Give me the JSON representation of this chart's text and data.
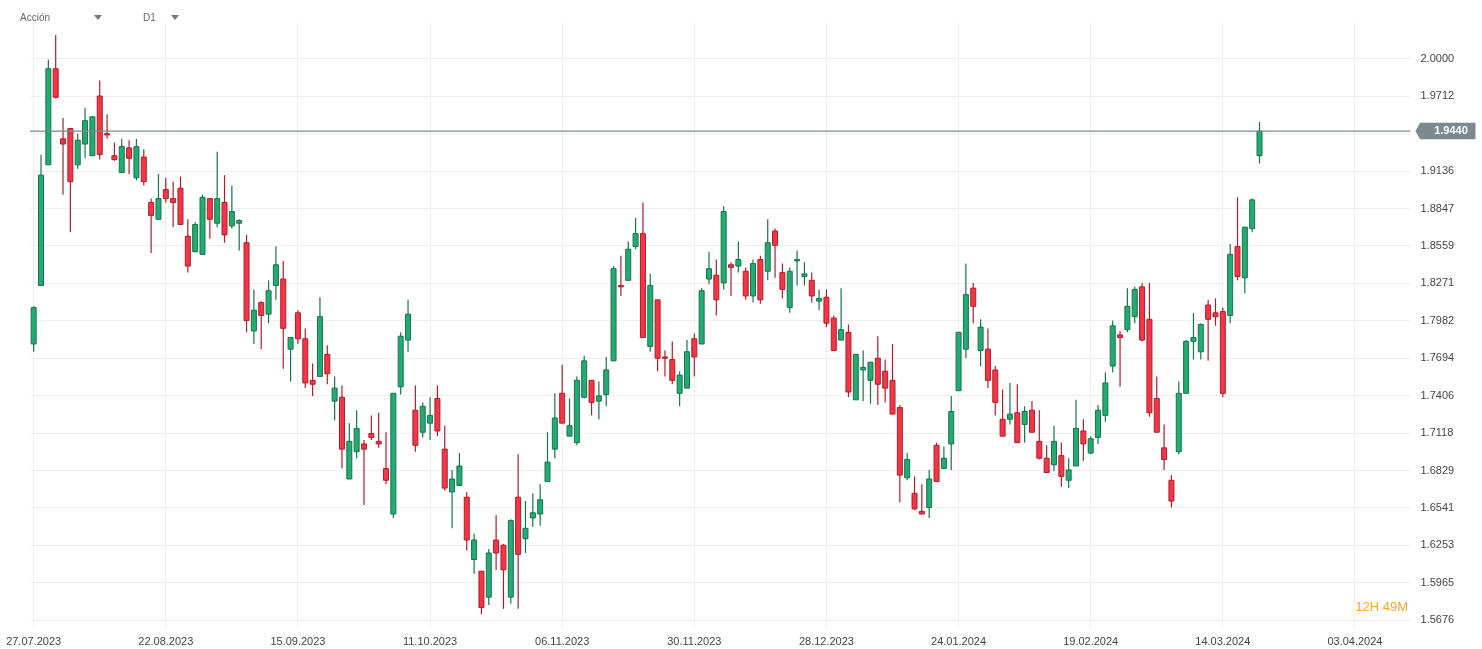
{
  "chart_data": {
    "type": "candlestick",
    "title": "Acción",
    "subtitle": "D1",
    "categories": [
      "27.07.2023",
      null,
      null,
      null,
      null,
      null,
      null,
      null,
      null,
      null,
      null,
      null,
      null,
      null,
      null,
      null,
      null,
      null,
      "22.08.2023",
      null,
      null,
      null,
      null,
      null,
      null,
      null,
      null,
      null,
      null,
      null,
      null,
      null,
      null,
      null,
      null,
      null,
      "15.09.2023",
      null,
      null,
      null,
      null,
      null,
      null,
      null,
      null,
      null,
      null,
      null,
      null,
      null,
      null,
      null,
      null,
      null,
      "11.10.2023",
      null,
      null,
      null,
      null,
      null,
      null,
      null,
      null,
      null,
      null,
      null,
      null,
      null,
      null,
      null,
      null,
      null,
      "06.11.2023",
      null,
      null,
      null,
      null,
      null,
      null,
      null,
      null,
      null,
      null,
      null,
      null,
      null,
      null,
      null,
      null,
      null,
      "30.11.2023",
      null,
      null,
      null,
      null,
      null,
      null,
      null,
      null,
      null,
      null,
      null,
      null,
      null,
      null,
      null,
      null,
      null,
      "28.12.2023",
      null,
      null,
      null,
      null,
      null,
      null,
      null,
      null,
      null,
      null,
      null,
      null,
      null,
      null,
      null,
      null,
      null,
      "24.01.2024",
      null,
      null,
      null,
      null,
      null,
      null,
      null,
      null,
      null,
      null,
      null,
      null,
      null,
      null,
      null,
      null,
      null,
      "19.02.2024",
      null,
      null,
      null,
      null,
      null,
      null,
      null,
      null,
      null,
      null,
      null,
      null,
      null,
      null,
      null,
      null,
      null,
      "14.03.2024",
      null,
      null,
      null,
      null,
      null,
      null,
      null,
      null,
      null,
      null,
      null,
      null,
      null,
      null,
      null,
      null,
      null,
      "03.04.2024",
      null,
      null,
      null,
      null,
      null,
      null,
      null
    ],
    "ohlc": [
      [
        1.78,
        1.809,
        1.774,
        1.808
      ],
      [
        1.825,
        1.926,
        1.825,
        1.91
      ],
      [
        1.918,
        1.999,
        1.918,
        1.992
      ],
      [
        1.992,
        2.018,
        1.969,
        1.97
      ],
      [
        1.938,
        1.954,
        1.895,
        1.934
      ],
      [
        1.946,
        1.946,
        1.866,
        1.905
      ],
      [
        1.918,
        1.942,
        1.915,
        1.937
      ],
      [
        1.934,
        1.962,
        1.923,
        1.952
      ],
      [
        1.925,
        1.955,
        1.925,
        1.955
      ],
      [
        1.971,
        1.983,
        1.922,
        1.926
      ],
      [
        1.942,
        1.957,
        1.938,
        1.941
      ],
      [
        1.925,
        1.935,
        1.921,
        1.922
      ],
      [
        1.912,
        1.938,
        1.912,
        1.932
      ],
      [
        1.931,
        1.937,
        1.911,
        1.923
      ],
      [
        1.908,
        1.938,
        1.906,
        1.932
      ],
      [
        1.924,
        1.93,
        1.902,
        1.905
      ],
      [
        1.889,
        1.892,
        1.85,
        1.879
      ],
      [
        1.876,
        1.911,
        1.876,
        1.892
      ],
      [
        1.899,
        1.908,
        1.889,
        1.892
      ],
      [
        1.892,
        1.905,
        1.87,
        1.889
      ],
      [
        1.9,
        1.909,
        1.872,
        1.872
      ],
      [
        1.863,
        1.876,
        1.835,
        1.84
      ],
      [
        1.851,
        1.874,
        1.851,
        1.872
      ],
      [
        1.849,
        1.895,
        1.849,
        1.893
      ],
      [
        1.892,
        1.892,
        1.861,
        1.876
      ],
      [
        1.873,
        1.928,
        1.87,
        1.892
      ],
      [
        1.889,
        1.91,
        1.858,
        1.864
      ],
      [
        1.871,
        1.902,
        1.869,
        1.882
      ],
      [
        1.873,
        1.876,
        1.852,
        1.875
      ],
      [
        1.858,
        1.864,
        1.789,
        1.798
      ],
      [
        1.79,
        1.822,
        1.78,
        1.806
      ],
      [
        1.812,
        1.813,
        1.776,
        1.802
      ],
      [
        1.803,
        1.829,
        1.796,
        1.821
      ],
      [
        1.825,
        1.855,
        1.814,
        1.841
      ],
      [
        1.83,
        1.844,
        1.761,
        1.792
      ],
      [
        1.776,
        1.785,
        1.751,
        1.785
      ],
      [
        1.804,
        1.806,
        1.78,
        1.784
      ],
      [
        1.784,
        1.792,
        1.746,
        1.75
      ],
      [
        1.752,
        1.765,
        1.74,
        1.749
      ],
      [
        1.755,
        1.816,
        1.755,
        1.801
      ],
      [
        1.772,
        1.779,
        1.749,
        1.757
      ],
      [
        1.736,
        1.755,
        1.721,
        1.746
      ],
      [
        1.739,
        1.748,
        1.684,
        1.699
      ],
      [
        1.676,
        1.719,
        1.676,
        1.705
      ],
      [
        1.697,
        1.729,
        1.692,
        1.715
      ],
      [
        1.703,
        1.706,
        1.656,
        1.699
      ],
      [
        1.711,
        1.725,
        1.706,
        1.708
      ],
      [
        1.705,
        1.727,
        1.7,
        1.703
      ],
      [
        1.684,
        1.712,
        1.672,
        1.675
      ],
      [
        1.649,
        1.742,
        1.646,
        1.742
      ],
      [
        1.747,
        1.789,
        1.741,
        1.786
      ],
      [
        1.783,
        1.814,
        1.774,
        1.803
      ],
      [
        1.729,
        1.748,
        1.697,
        1.702
      ],
      [
        1.712,
        1.735,
        1.708,
        1.732
      ],
      [
        1.719,
        1.739,
        1.706,
        1.725
      ],
      [
        1.738,
        1.748,
        1.709,
        1.713
      ],
      [
        1.699,
        1.717,
        1.667,
        1.669
      ],
      [
        1.666,
        1.683,
        1.638,
        1.676
      ],
      [
        1.671,
        1.696,
        1.671,
        1.686
      ],
      [
        1.662,
        1.666,
        1.621,
        1.629
      ],
      [
        1.614,
        1.634,
        1.603,
        1.629
      ],
      [
        1.605,
        1.605,
        1.572,
        1.577
      ],
      [
        1.585,
        1.622,
        1.579,
        1.619
      ],
      [
        1.629,
        1.648,
        1.606,
        1.619
      ],
      [
        1.625,
        1.626,
        1.576,
        1.606
      ],
      [
        1.585,
        1.645,
        1.58,
        1.644
      ],
      [
        1.662,
        1.695,
        1.576,
        1.618
      ],
      [
        1.63,
        1.659,
        1.619,
        1.638
      ],
      [
        1.646,
        1.665,
        1.639,
        1.65
      ],
      [
        1.649,
        1.672,
        1.64,
        1.66
      ],
      [
        1.674,
        1.712,
        1.674,
        1.689
      ],
      [
        1.699,
        1.742,
        1.692,
        1.723
      ],
      [
        1.742,
        1.764,
        1.719,
        1.719
      ],
      [
        1.709,
        1.738,
        1.709,
        1.717
      ],
      [
        1.704,
        1.755,
        1.702,
        1.752
      ],
      [
        1.739,
        1.771,
        1.738,
        1.767
      ],
      [
        1.752,
        1.752,
        1.725,
        1.735
      ],
      [
        1.736,
        1.751,
        1.722,
        1.74
      ],
      [
        1.741,
        1.77,
        1.732,
        1.76
      ],
      [
        1.767,
        1.84,
        1.767,
        1.838
      ],
      [
        1.825,
        1.848,
        1.817,
        1.824
      ],
      [
        1.829,
        1.859,
        1.829,
        1.853
      ],
      [
        1.855,
        1.877,
        1.853,
        1.865
      ],
      [
        1.865,
        1.889,
        1.785,
        1.785
      ],
      [
        1.778,
        1.834,
        1.774,
        1.825
      ],
      [
        1.814,
        1.814,
        1.759,
        1.769
      ],
      [
        1.77,
        1.775,
        1.755,
        1.769
      ],
      [
        1.768,
        1.782,
        1.749,
        1.752
      ],
      [
        1.742,
        1.759,
        1.732,
        1.756
      ],
      [
        1.746,
        1.783,
        1.746,
        1.774
      ],
      [
        1.784,
        1.788,
        1.755,
        1.77
      ],
      [
        1.78,
        1.823,
        1.78,
        1.821
      ],
      [
        1.83,
        1.851,
        1.826,
        1.838
      ],
      [
        1.833,
        1.845,
        1.802,
        1.814
      ],
      [
        1.827,
        1.886,
        1.822,
        1.882
      ],
      [
        1.841,
        1.843,
        1.817,
        1.839
      ],
      [
        1.84,
        1.859,
        1.835,
        1.845
      ],
      [
        1.836,
        1.839,
        1.814,
        1.817
      ],
      [
        1.817,
        1.845,
        1.812,
        1.842
      ],
      [
        1.845,
        1.848,
        1.811,
        1.814
      ],
      [
        1.836,
        1.876,
        1.829,
        1.858
      ],
      [
        1.867,
        1.869,
        1.831,
        1.856
      ],
      [
        1.835,
        1.842,
        1.815,
        1.822
      ],
      [
        1.808,
        1.839,
        1.804,
        1.836
      ],
      [
        1.844,
        1.852,
        1.825,
        1.845
      ],
      [
        1.832,
        1.843,
        1.825,
        1.834
      ],
      [
        1.829,
        1.835,
        1.812,
        1.817
      ],
      [
        1.813,
        1.822,
        1.806,
        1.815
      ],
      [
        1.816,
        1.822,
        1.793,
        1.796
      ],
      [
        1.8,
        1.802,
        1.775,
        1.775
      ],
      [
        1.783,
        1.823,
        1.783,
        1.791
      ],
      [
        1.789,
        1.795,
        1.739,
        1.743
      ],
      [
        1.737,
        1.772,
        1.737,
        1.772
      ],
      [
        1.76,
        1.775,
        1.736,
        1.762
      ],
      [
        1.752,
        1.766,
        1.734,
        1.766
      ],
      [
        1.769,
        1.786,
        1.733,
        1.749
      ],
      [
        1.759,
        1.768,
        1.735,
        1.746
      ],
      [
        1.752,
        1.78,
        1.726,
        1.726
      ],
      [
        1.731,
        1.733,
        1.658,
        1.679
      ],
      [
        1.677,
        1.696,
        1.675,
        1.691
      ],
      [
        1.665,
        1.678,
        1.652,
        1.653
      ],
      [
        1.651,
        1.672,
        1.649,
        1.649
      ],
      [
        1.654,
        1.683,
        1.646,
        1.676
      ],
      [
        1.702,
        1.704,
        1.674,
        1.674
      ],
      [
        1.684,
        1.701,
        1.684,
        1.692
      ],
      [
        1.703,
        1.74,
        1.683,
        1.728
      ],
      [
        1.744,
        1.789,
        1.744,
        1.789
      ],
      [
        1.776,
        1.842,
        1.769,
        1.818
      ],
      [
        1.823,
        1.827,
        1.796,
        1.809
      ],
      [
        1.775,
        1.799,
        1.763,
        1.793
      ],
      [
        1.776,
        1.792,
        1.746,
        1.752
      ],
      [
        1.76,
        1.763,
        1.725,
        1.735
      ],
      [
        1.722,
        1.745,
        1.709,
        1.709
      ],
      [
        1.722,
        1.75,
        1.718,
        1.726
      ],
      [
        1.727,
        1.749,
        1.704,
        1.704
      ],
      [
        1.718,
        1.732,
        1.704,
        1.728
      ],
      [
        1.729,
        1.736,
        1.712,
        1.712
      ],
      [
        1.705,
        1.729,
        1.691,
        1.692
      ],
      [
        1.692,
        1.702,
        1.681,
        1.681
      ],
      [
        1.687,
        1.717,
        1.682,
        1.705
      ],
      [
        1.694,
        1.704,
        1.67,
        1.678
      ],
      [
        1.675,
        1.692,
        1.669,
        1.683
      ],
      [
        1.686,
        1.737,
        1.686,
        1.715
      ],
      [
        1.713,
        1.722,
        1.69,
        1.703
      ],
      [
        1.696,
        1.709,
        1.695,
        1.707
      ],
      [
        1.708,
        1.733,
        1.703,
        1.729
      ],
      [
        1.725,
        1.758,
        1.72,
        1.75
      ],
      [
        1.763,
        1.798,
        1.758,
        1.794
      ],
      [
        1.787,
        1.79,
        1.747,
        1.785
      ],
      [
        1.791,
        1.823,
        1.789,
        1.809
      ],
      [
        1.801,
        1.824,
        1.796,
        1.822
      ],
      [
        1.824,
        1.827,
        1.782,
        1.783
      ],
      [
        1.799,
        1.827,
        1.724,
        1.727
      ],
      [
        1.738,
        1.755,
        1.712,
        1.712
      ],
      [
        1.7,
        1.718,
        1.683,
        1.691
      ],
      [
        1.675,
        1.679,
        1.654,
        1.659
      ],
      [
        1.697,
        1.751,
        1.695,
        1.742
      ],
      [
        1.742,
        1.783,
        1.742,
        1.782
      ],
      [
        1.782,
        1.804,
        1.768,
        1.785
      ],
      [
        1.774,
        1.796,
        1.768,
        1.795
      ],
      [
        1.81,
        1.814,
        1.767,
        1.799
      ],
      [
        1.804,
        1.815,
        1.794,
        1.801
      ],
      [
        1.805,
        1.808,
        1.739,
        1.742
      ],
      [
        1.802,
        1.857,
        1.796,
        1.849
      ],
      [
        1.855,
        1.893,
        1.829,
        1.832
      ],
      [
        1.831,
        1.87,
        1.819,
        1.87
      ],
      [
        1.869,
        1.892,
        1.866,
        1.891
      ],
      [
        1.925,
        1.951,
        1.919,
        1.944
      ],
      null,
      null,
      null,
      null,
      null,
      null,
      null,
      null,
      null,
      null,
      null,
      null,
      null,
      null,
      null,
      null,
      null,
      null,
      null,
      null
    ],
    "ylim": [
      1.562,
      2.028
    ],
    "yticks": [
      {
        "value": 2,
        "label": "2.0000"
      },
      1.9712,
      {
        "value": 1.9424,
        "label": null
      },
      1.9136,
      1.8847,
      1.8559,
      1.8271,
      1.7982,
      1.7694,
      1.7406,
      1.7118,
      1.6829,
      1.6541,
      1.6253,
      1.5965,
      1.5676
    ],
    "grid": true,
    "ref_lines": [
      {
        "axis": "y",
        "value": 1.944,
        "label": "1.9440",
        "color": "#7a8a90"
      }
    ],
    "annotations": [
      "12H 49M"
    ]
  }
}
